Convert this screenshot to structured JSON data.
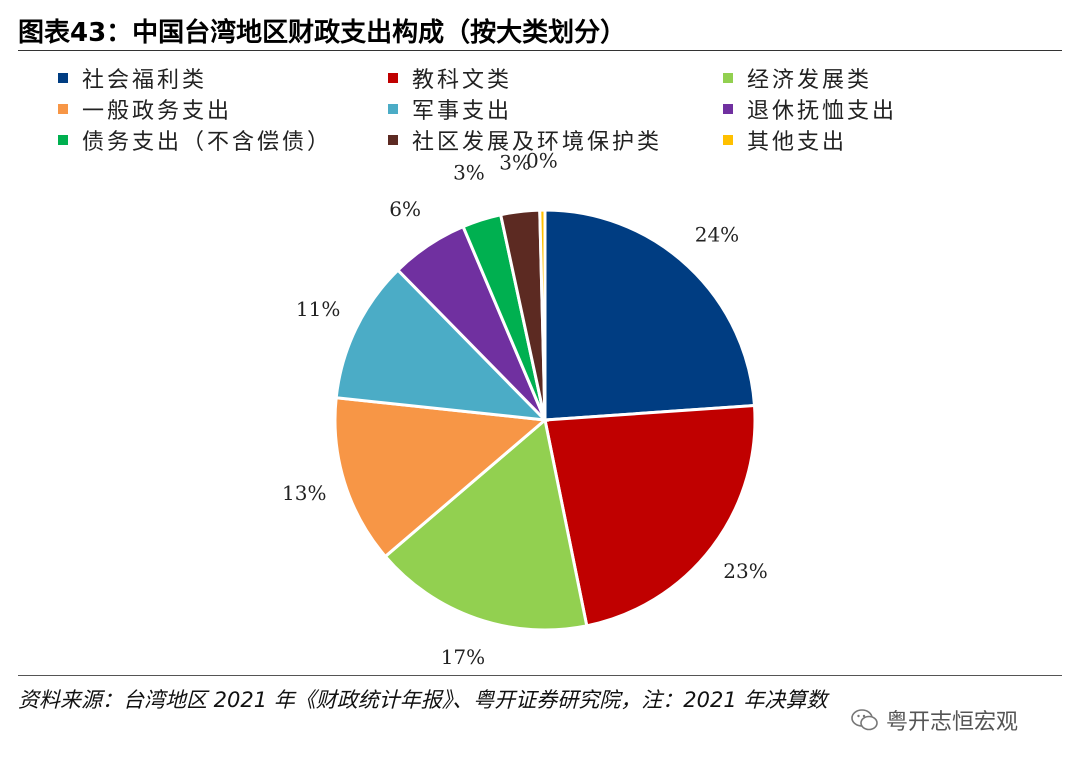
{
  "title": "图表43：中国台湾地区财政支出构成（按大类划分）",
  "source_note": "资料来源：台湾地区 2021 年《财政统计年报》、粤开证券研究院，注：2021 年决算数",
  "watermark": "粤开志恒宏观",
  "chart_data": {
    "type": "pie",
    "title": "图表43：中国台湾地区财政支出构成（按大类划分）",
    "legend_position": "top",
    "slices": [
      {
        "name": "社会福利类",
        "value": 24,
        "label": "24%",
        "color": "#003D82"
      },
      {
        "name": "教科文类",
        "value": 23,
        "label": "23%",
        "color": "#C00000"
      },
      {
        "name": "经济发展类",
        "value": 17,
        "label": "17%",
        "color": "#92D050"
      },
      {
        "name": "一般政务支出",
        "value": 13,
        "label": "13%",
        "color": "#F79646"
      },
      {
        "name": "军事支出",
        "value": 11,
        "label": "11%",
        "color": "#4BACC6"
      },
      {
        "name": "退休抚恤支出",
        "value": 6,
        "label": "6%",
        "color": "#7030A0"
      },
      {
        "name": "债务支出（不含偿债）",
        "value": 3,
        "label": "3%",
        "color": "#00B050"
      },
      {
        "name": "社区发展及环境保护类",
        "value": 3,
        "label": "3%",
        "color": "#5C2A22"
      },
      {
        "name": "其他支出",
        "value": 0.4,
        "label": "0%",
        "color": "#FFC000"
      }
    ]
  }
}
